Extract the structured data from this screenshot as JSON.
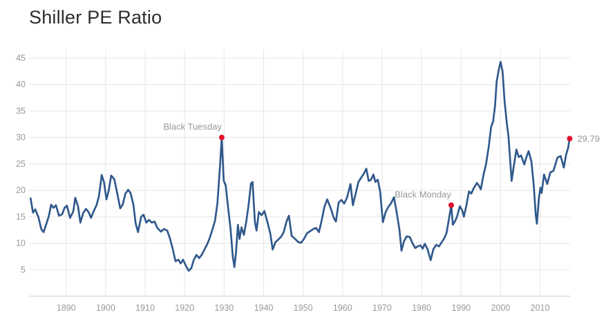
{
  "page": {
    "title": "Shiller PE Ratio"
  },
  "chart_data": {
    "type": "line",
    "title": "Shiller PE Ratio",
    "xlabel": "",
    "ylabel": "",
    "legend": false,
    "grid": true,
    "x_range": [
      1880.6,
      2017.6
    ],
    "y_range": [
      0,
      45
    ],
    "x_ticks": [
      1890,
      1900,
      1910,
      1920,
      1930,
      1940,
      1950,
      1960,
      1970,
      1980,
      1990,
      2000,
      2010
    ],
    "y_ticks": [
      5,
      10,
      15,
      20,
      25,
      30,
      35,
      40,
      45
    ],
    "colors": {
      "line": "#30598c",
      "dot": "#e3112d",
      "grid": "#e6e6e6",
      "axis_line": "#cccccc",
      "tick_label": "#999999",
      "annotation_text": "#999999",
      "title": "#2d2d2d"
    },
    "series": [
      {
        "name": "Shiller PE Ratio",
        "points": [
          [
            1881,
            18.5
          ],
          [
            1881.6,
            15.8
          ],
          [
            1882.2,
            16.4
          ],
          [
            1883,
            14.9
          ],
          [
            1883.7,
            12.7
          ],
          [
            1884.3,
            12.1
          ],
          [
            1885,
            13.7
          ],
          [
            1885.6,
            15.1
          ],
          [
            1886.2,
            17.3
          ],
          [
            1886.8,
            16.7
          ],
          [
            1887.4,
            17.2
          ],
          [
            1888.2,
            15.2
          ],
          [
            1889,
            15.5
          ],
          [
            1889.6,
            16.7
          ],
          [
            1890.2,
            17.1
          ],
          [
            1891,
            14.8
          ],
          [
            1891.8,
            16.0
          ],
          [
            1892.3,
            18.6
          ],
          [
            1893,
            17.0
          ],
          [
            1893.6,
            13.9
          ],
          [
            1894.3,
            15.7
          ],
          [
            1895,
            16.5
          ],
          [
            1895.7,
            15.9
          ],
          [
            1896.3,
            14.8
          ],
          [
            1897,
            16.1
          ],
          [
            1897.7,
            17.2
          ],
          [
            1898.3,
            18.9
          ],
          [
            1899,
            22.9
          ],
          [
            1899.6,
            21.5
          ],
          [
            1900.2,
            18.3
          ],
          [
            1900.8,
            20.0
          ],
          [
            1901.4,
            22.8
          ],
          [
            1902.2,
            22.1
          ],
          [
            1903,
            19.2
          ],
          [
            1903.7,
            16.6
          ],
          [
            1904.3,
            17.3
          ],
          [
            1905,
            19.4
          ],
          [
            1905.7,
            20.1
          ],
          [
            1906.3,
            19.5
          ],
          [
            1907,
            17.4
          ],
          [
            1907.6,
            13.8
          ],
          [
            1908.2,
            12.1
          ],
          [
            1909,
            15.0
          ],
          [
            1909.6,
            15.4
          ],
          [
            1910.3,
            13.9
          ],
          [
            1911,
            14.4
          ],
          [
            1911.7,
            13.9
          ],
          [
            1912.4,
            14.1
          ],
          [
            1913.1,
            12.9
          ],
          [
            1914,
            12.2
          ],
          [
            1914.8,
            12.7
          ],
          [
            1915.6,
            12.4
          ],
          [
            1916.3,
            10.9
          ],
          [
            1917,
            8.9
          ],
          [
            1917.7,
            6.6
          ],
          [
            1918.4,
            6.9
          ],
          [
            1919,
            6.2
          ],
          [
            1919.6,
            6.9
          ],
          [
            1920.3,
            5.8
          ],
          [
            1921,
            4.8
          ],
          [
            1921.7,
            5.3
          ],
          [
            1922.3,
            6.8
          ],
          [
            1923,
            7.8
          ],
          [
            1923.7,
            7.2
          ],
          [
            1924.4,
            7.9
          ],
          [
            1925,
            8.8
          ],
          [
            1925.7,
            9.8
          ],
          [
            1926.3,
            10.9
          ],
          [
            1927,
            12.5
          ],
          [
            1927.7,
            14.3
          ],
          [
            1928.3,
            17.5
          ],
          [
            1929,
            25.0
          ],
          [
            1929.4,
            30.0
          ],
          [
            1929.9,
            21.8
          ],
          [
            1930.4,
            21.0
          ],
          [
            1931,
            16.7
          ],
          [
            1931.6,
            12.9
          ],
          [
            1932.2,
            7.5
          ],
          [
            1932.6,
            5.5
          ],
          [
            1933,
            8.2
          ],
          [
            1933.5,
            13.5
          ],
          [
            1933.9,
            10.8
          ],
          [
            1934.4,
            13.0
          ],
          [
            1935,
            11.6
          ],
          [
            1935.6,
            14.0
          ],
          [
            1936.2,
            17.3
          ],
          [
            1936.8,
            21.3
          ],
          [
            1937.2,
            21.6
          ],
          [
            1937.8,
            14.0
          ],
          [
            1938.2,
            12.4
          ],
          [
            1938.8,
            15.9
          ],
          [
            1939.5,
            15.3
          ],
          [
            1940.2,
            16.1
          ],
          [
            1941,
            13.9
          ],
          [
            1941.7,
            11.8
          ],
          [
            1942.3,
            8.8
          ],
          [
            1943,
            10.2
          ],
          [
            1943.7,
            10.7
          ],
          [
            1944.4,
            11.2
          ],
          [
            1945.1,
            12.1
          ],
          [
            1945.8,
            14.1
          ],
          [
            1946.4,
            15.2
          ],
          [
            1947.1,
            11.4
          ],
          [
            1948,
            10.8
          ],
          [
            1948.8,
            10.2
          ],
          [
            1949.5,
            10.1
          ],
          [
            1950.2,
            10.8
          ],
          [
            1951,
            11.9
          ],
          [
            1951.8,
            12.3
          ],
          [
            1952.6,
            12.7
          ],
          [
            1953.3,
            12.9
          ],
          [
            1954,
            12.1
          ],
          [
            1954.7,
            14.3
          ],
          [
            1955.4,
            16.9
          ],
          [
            1956.1,
            18.3
          ],
          [
            1957,
            16.6
          ],
          [
            1957.7,
            14.9
          ],
          [
            1958.3,
            14.1
          ],
          [
            1959,
            17.7
          ],
          [
            1959.7,
            18.2
          ],
          [
            1960.4,
            17.5
          ],
          [
            1961.1,
            18.6
          ],
          [
            1962,
            21.2
          ],
          [
            1962.6,
            17.2
          ],
          [
            1963.3,
            19.4
          ],
          [
            1964,
            21.6
          ],
          [
            1964.7,
            22.4
          ],
          [
            1965.4,
            23.2
          ],
          [
            1966,
            24.1
          ],
          [
            1966.6,
            21.8
          ],
          [
            1967.2,
            22.0
          ],
          [
            1967.8,
            23.0
          ],
          [
            1968.3,
            21.6
          ],
          [
            1968.9,
            22.0
          ],
          [
            1969.5,
            19.8
          ],
          [
            1970.2,
            14.0
          ],
          [
            1970.9,
            15.9
          ],
          [
            1971.6,
            16.9
          ],
          [
            1972.3,
            17.6
          ],
          [
            1973,
            18.7
          ],
          [
            1973.7,
            15.8
          ],
          [
            1974.4,
            12.5
          ],
          [
            1974.9,
            8.6
          ],
          [
            1975.5,
            10.3
          ],
          [
            1976.2,
            11.3
          ],
          [
            1977,
            11.2
          ],
          [
            1977.7,
            10.0
          ],
          [
            1978.4,
            9.1
          ],
          [
            1979,
            9.4
          ],
          [
            1979.7,
            9.6
          ],
          [
            1980.3,
            9.0
          ],
          [
            1980.8,
            9.9
          ],
          [
            1981.5,
            8.9
          ],
          [
            1982.3,
            6.8
          ],
          [
            1983,
            8.9
          ],
          [
            1983.7,
            9.7
          ],
          [
            1984.4,
            9.4
          ],
          [
            1985,
            10.1
          ],
          [
            1985.7,
            10.9
          ],
          [
            1986.3,
            11.9
          ],
          [
            1987,
            14.9
          ],
          [
            1987.5,
            17.2
          ],
          [
            1987.9,
            13.5
          ],
          [
            1988.5,
            14.2
          ],
          [
            1989,
            15.1
          ],
          [
            1989.7,
            17.0
          ],
          [
            1990.3,
            16.2
          ],
          [
            1990.7,
            15.0
          ],
          [
            1991.3,
            17.0
          ],
          [
            1992,
            19.8
          ],
          [
            1992.6,
            19.4
          ],
          [
            1993.2,
            20.4
          ],
          [
            1994,
            21.4
          ],
          [
            1994.6,
            20.8
          ],
          [
            1995,
            20.2
          ],
          [
            1995.7,
            23.0
          ],
          [
            1996.3,
            24.9
          ],
          [
            1997,
            28.3
          ],
          [
            1997.6,
            32.0
          ],
          [
            1998.1,
            33.0
          ],
          [
            1998.6,
            36.0
          ],
          [
            1999,
            40.5
          ],
          [
            1999.6,
            43.0
          ],
          [
            2000,
            44.3
          ],
          [
            2000.5,
            42.5
          ],
          [
            2001,
            37.0
          ],
          [
            2001.6,
            32.5
          ],
          [
            2002,
            30.3
          ],
          [
            2002.8,
            21.8
          ],
          [
            2003.5,
            25.3
          ],
          [
            2004,
            27.7
          ],
          [
            2004.6,
            26.3
          ],
          [
            2005.2,
            26.6
          ],
          [
            2006,
            24.9
          ],
          [
            2006.6,
            26.4
          ],
          [
            2007.1,
            27.4
          ],
          [
            2007.8,
            25.5
          ],
          [
            2008.4,
            21.0
          ],
          [
            2008.9,
            15.4
          ],
          [
            2009.2,
            13.7
          ],
          [
            2009.7,
            18.5
          ],
          [
            2010.1,
            20.5
          ],
          [
            2010.4,
            19.5
          ],
          [
            2011,
            23.0
          ],
          [
            2011.8,
            21.2
          ],
          [
            2012.6,
            23.4
          ],
          [
            2013.4,
            23.7
          ],
          [
            2014.4,
            26.2
          ],
          [
            2015.2,
            26.5
          ],
          [
            2016,
            24.3
          ],
          [
            2016.6,
            26.8
          ],
          [
            2017.1,
            28.0
          ],
          [
            2017.5,
            29.79
          ]
        ]
      }
    ],
    "annotations": [
      {
        "label": "Black Tuesday",
        "year": 1929.4,
        "value": 30.0,
        "placement": "above"
      },
      {
        "label": "Black Monday",
        "year": 1987.5,
        "value": 17.2,
        "placement": "above"
      },
      {
        "label": "29.79",
        "year": 2017.5,
        "value": 29.79,
        "placement": "right"
      }
    ]
  }
}
